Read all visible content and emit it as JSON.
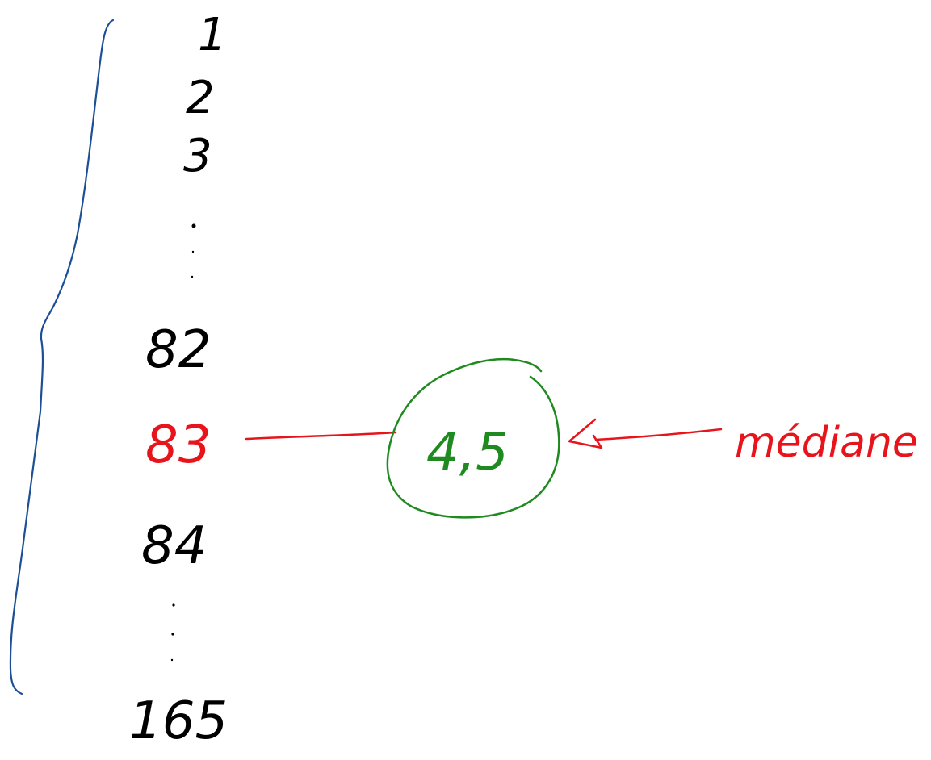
{
  "list": {
    "first": [
      "1",
      "2",
      "3"
    ],
    "upper_ellipsis": ":",
    "before_median": "82",
    "median_rank": "83",
    "after_median": "84",
    "lower_ellipsis": ":",
    "last": "165"
  },
  "median_value": "4,5",
  "median_label": "médiane",
  "colors": {
    "ink": "#000000",
    "median": "#e8141c",
    "value": "#1f8a1f",
    "brace": "#1d4f96"
  }
}
